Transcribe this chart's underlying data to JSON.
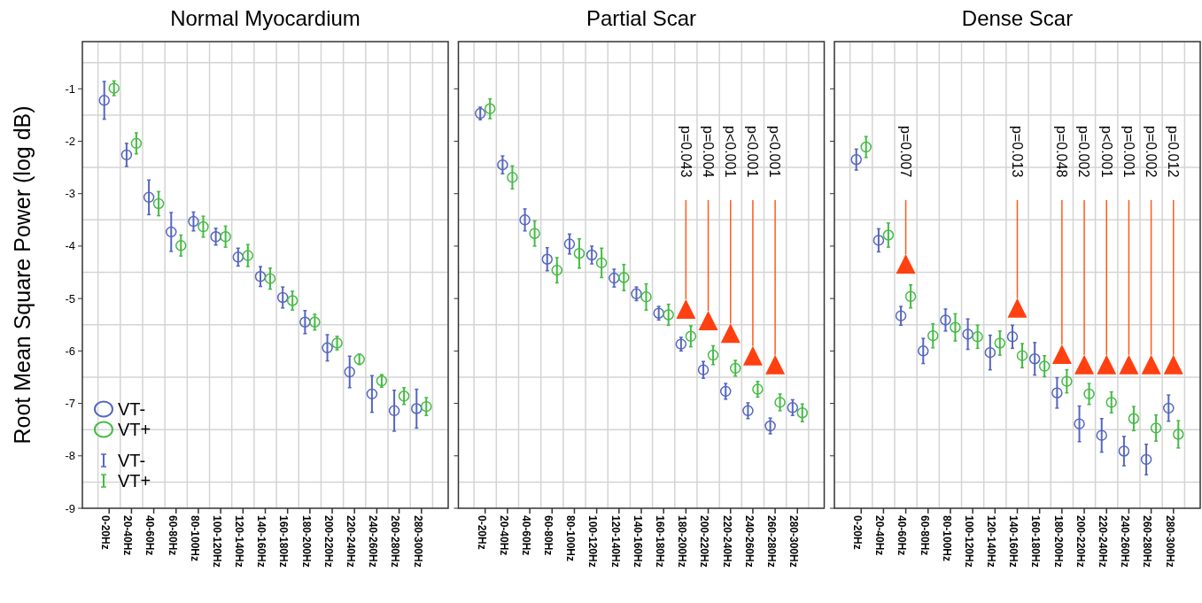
{
  "chart_data": [
    {
      "type": "scatter",
      "title": "Normal Myocardium",
      "ylabel": "Root Mean Square Power (log dB)",
      "categories": [
        "0-20Hz",
        "20-40Hz",
        "40-60Hz",
        "60-80Hz",
        "80-100Hz",
        "100-120Hz",
        "120-140Hz",
        "140-160Hz",
        "160-180Hz",
        "180-200Hz",
        "200-220Hz",
        "220-240Hz",
        "240-260Hz",
        "260-280Hz",
        "280-300Hz"
      ],
      "series": [
        {
          "name": "VT-",
          "color": "#5566c0",
          "values": [
            -1.22,
            -2.26,
            -3.07,
            -3.73,
            -3.53,
            -3.82,
            -4.21,
            -4.58,
            -4.98,
            -5.45,
            -5.94,
            -6.4,
            -6.82,
            -7.14,
            -7.1
          ],
          "errors": [
            0.36,
            0.22,
            0.33,
            0.37,
            0.18,
            0.16,
            0.17,
            0.19,
            0.2,
            0.22,
            0.25,
            0.3,
            0.35,
            0.39,
            0.37
          ]
        },
        {
          "name": "VT+",
          "color": "#44bb44",
          "values": [
            -0.99,
            -2.04,
            -3.19,
            -3.99,
            -3.63,
            -3.82,
            -4.18,
            -4.62,
            -5.04,
            -5.45,
            -5.85,
            -6.16,
            -6.57,
            -6.86,
            -7.06
          ],
          "errors": [
            0.14,
            0.2,
            0.23,
            0.2,
            0.2,
            0.2,
            0.21,
            0.2,
            0.18,
            0.15,
            0.13,
            0.1,
            0.12,
            0.16,
            0.17
          ]
        }
      ],
      "ylim": [
        -9,
        -0.1
      ],
      "yticks": [
        -9,
        -8,
        -7,
        -6,
        -5,
        -4,
        -3,
        -2,
        -1
      ],
      "grid": true,
      "legend": "bottom left",
      "marker": "circle"
    },
    {
      "type": "scatter",
      "title": "Partial Scar",
      "categories": [
        "0-20Hz",
        "20-40Hz",
        "40-60Hz",
        "60-80Hz",
        "80-100Hz",
        "100-120Hz",
        "120-140Hz",
        "140-160Hz",
        "160-180Hz",
        "180-200Hz",
        "200-220Hz",
        "220-240Hz",
        "240-260Hz",
        "260-280Hz",
        "280-300Hz"
      ],
      "series": [
        {
          "color": "#5566c0",
          "values": [
            -1.47,
            -2.45,
            -3.5,
            -4.25,
            -3.96,
            -4.17,
            -4.61,
            -4.91,
            -5.28,
            -5.87,
            -6.36,
            -6.77,
            -7.14,
            -7.43,
            -7.08
          ],
          "errors": [
            0.12,
            0.17,
            0.21,
            0.22,
            0.19,
            0.17,
            0.17,
            0.13,
            0.13,
            0.13,
            0.16,
            0.15,
            0.15,
            0.15,
            0.15
          ]
        },
        {
          "color": "#44bb44",
          "values": [
            -1.38,
            -2.69,
            -3.76,
            -4.46,
            -4.14,
            -4.32,
            -4.6,
            -4.97,
            -5.31,
            -5.72,
            -6.08,
            -6.33,
            -6.73,
            -6.98,
            -7.18
          ],
          "errors": [
            0.19,
            0.22,
            0.24,
            0.24,
            0.28,
            0.28,
            0.25,
            0.25,
            0.2,
            0.2,
            0.18,
            0.15,
            0.15,
            0.16,
            0.17
          ]
        },
        {
          "type": "scatter",
          "marker": "triangle",
          "color": "#ff4010",
          "x": [
            "180-200Hz",
            "200-220Hz",
            "220-240Hz",
            "240-260Hz",
            "260-280Hz"
          ],
          "values": [
            -5.2,
            -5.42,
            -5.66,
            -6.09,
            -6.26
          ]
        }
      ],
      "annotations": [
        "p=0.043",
        "p=0.004",
        "p<0.001",
        "p<0.001",
        "p<0.001"
      ],
      "ylim": [
        -9,
        -0.1
      ],
      "yticks": [
        -9,
        -8,
        -7,
        -6,
        -5,
        -4,
        -3,
        -2,
        -1
      ],
      "tick_labels": "x",
      "grid": true,
      "marker": "circle"
    },
    {
      "type": "scatter",
      "title": "Dense Scar",
      "categories": [
        "0-20Hz",
        "20-40Hz",
        "40-60Hz",
        "60-80Hz",
        "80-100Hz",
        "100-120Hz",
        "120-140Hz",
        "140-160Hz",
        "160-180Hz",
        "180-200Hz",
        "200-220Hz",
        "220-240Hz",
        "240-260Hz",
        "260-280Hz",
        "280-300Hz"
      ],
      "series": [
        {
          "color": "#5566c0",
          "values": [
            -2.35,
            -3.89,
            -5.33,
            -6.0,
            -5.41,
            -5.68,
            -6.03,
            -5.73,
            -6.15,
            -6.8,
            -7.39,
            -7.61,
            -7.91,
            -8.07,
            -7.09
          ],
          "errors": [
            0.2,
            0.22,
            0.18,
            0.24,
            0.21,
            0.29,
            0.33,
            0.22,
            0.31,
            0.29,
            0.34,
            0.32,
            0.28,
            0.29,
            0.25
          ]
        },
        {
          "color": "#44bb44",
          "values": [
            -2.11,
            -3.79,
            -4.96,
            -5.71,
            -5.55,
            -5.73,
            -5.85,
            -6.09,
            -6.29,
            -6.58,
            -6.82,
            -6.98,
            -7.29,
            -7.47,
            -7.59
          ],
          "errors": [
            0.2,
            0.23,
            0.22,
            0.23,
            0.26,
            0.22,
            0.23,
            0.23,
            0.2,
            0.22,
            0.2,
            0.2,
            0.23,
            0.25,
            0.26
          ]
        },
        {
          "type": "scatter",
          "marker": "triangle",
          "color": "#ff4010",
          "x": [
            "40-60Hz",
            "140-160Hz",
            "180-200Hz",
            "200-220Hz",
            "220-240Hz",
            "240-260Hz",
            "260-280Hz",
            "280-300Hz"
          ],
          "values": [
            -4.34,
            -5.18,
            -6.06,
            -6.26,
            -6.26,
            -6.26,
            -6.26,
            -6.26
          ]
        }
      ],
      "annotations": [
        "p=0.007",
        "p=0.013",
        "p=0.048",
        "p=0.002",
        "p<0.001",
        "p=0.001",
        "p=0.002",
        "p=0.012"
      ],
      "ylim": [
        -9,
        -0.1
      ],
      "yticks": [
        -9,
        -8,
        -7,
        -6,
        -5,
        -4,
        -3,
        -2,
        -1
      ],
      "tick_labels": "x",
      "grid": true,
      "marker": "circle"
    }
  ]
}
